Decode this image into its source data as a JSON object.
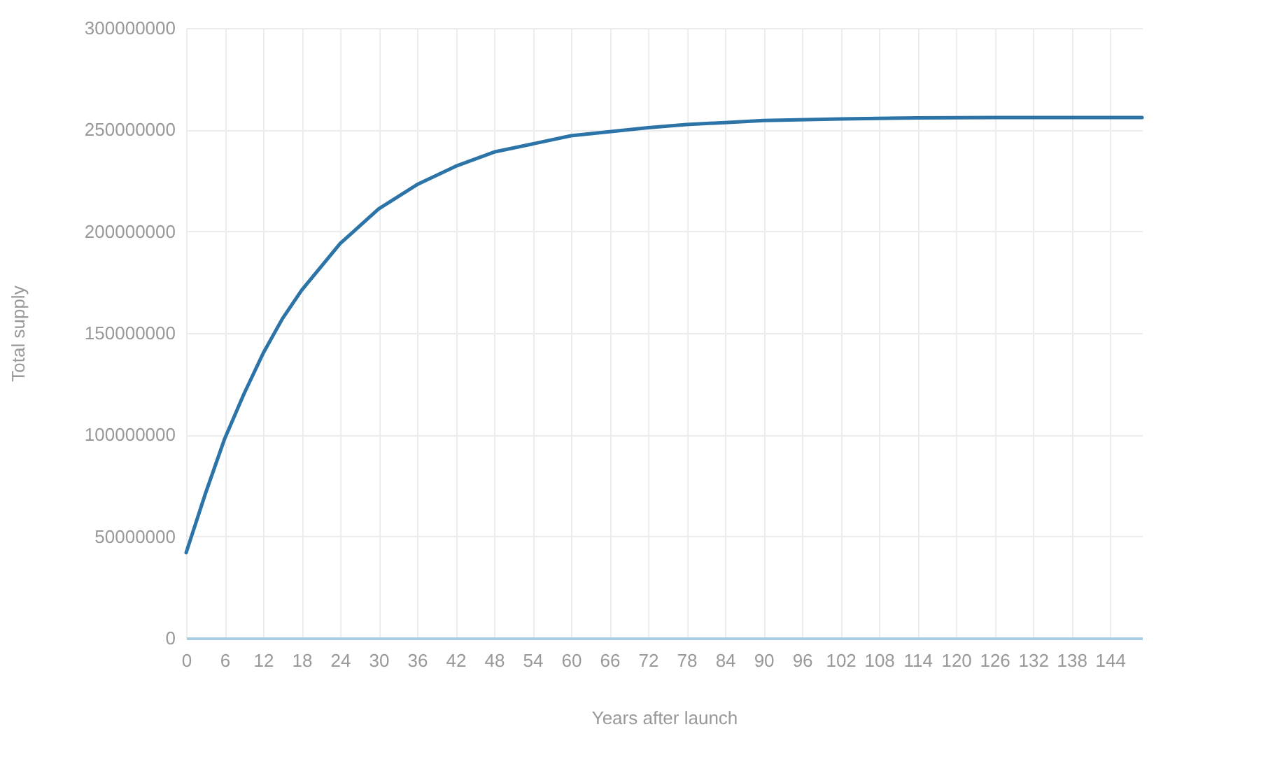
{
  "chart_data": {
    "type": "line",
    "xlabel": "Years after launch",
    "ylabel": "Total supply",
    "x": [
      0,
      3,
      6,
      9,
      12,
      15,
      18,
      24,
      30,
      36,
      42,
      48,
      54,
      60,
      66,
      72,
      78,
      84,
      90,
      102,
      114,
      126,
      149
    ],
    "series": [
      {
        "color": "#2c74a8",
        "values": [
          42000000,
          71000000,
          98000000,
          120000000,
          140000000,
          157000000,
          171000000,
          194000000,
          211000000,
          223000000,
          232000000,
          239000000,
          243000000,
          247000000,
          249000000,
          251000000,
          252500000,
          253500000,
          254500000,
          255300000,
          255800000,
          256000000,
          256000000
        ]
      }
    ],
    "xlim": [
      0,
      149
    ],
    "xticks": [
      0,
      6,
      12,
      18,
      24,
      30,
      36,
      42,
      48,
      54,
      60,
      66,
      72,
      78,
      84,
      90,
      96,
      102,
      108,
      114,
      120,
      126,
      132,
      138,
      144
    ],
    "ylim": [
      0,
      300000000
    ],
    "yticks": [
      0,
      50000000,
      100000000,
      150000000,
      200000000,
      250000000,
      300000000
    ],
    "grid": true,
    "marker": "none",
    "line_style": "solid"
  }
}
